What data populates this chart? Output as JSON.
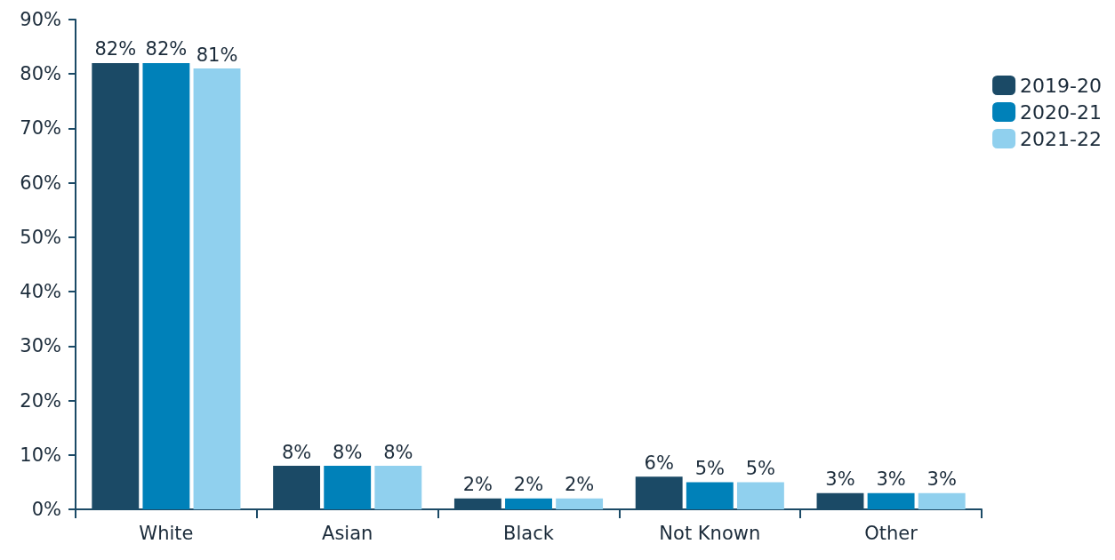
{
  "chart_data": {
    "type": "bar",
    "categories": [
      "White",
      "Asian",
      "Black",
      "Not Known",
      "Other"
    ],
    "series": [
      {
        "name": "2019-20",
        "color": "#1b4a66",
        "values": [
          82,
          8,
          2,
          6,
          3
        ],
        "value_labels": [
          "82%",
          "8%",
          "2%",
          "6%",
          "3%"
        ]
      },
      {
        "name": "2020-21",
        "color": "#0081b9",
        "values": [
          82,
          8,
          2,
          5,
          3
        ],
        "value_labels": [
          "82%",
          "8%",
          "2%",
          "5%",
          "3%"
        ]
      },
      {
        "name": "2021-22",
        "color": "#90d0ee",
        "values": [
          81,
          8,
          2,
          5,
          3
        ],
        "value_labels": [
          "81%",
          "8%",
          "2%",
          "5%",
          "3%"
        ]
      }
    ],
    "ylim": [
      0,
      90
    ],
    "yticks": [
      {
        "value": 0,
        "label": "0%"
      },
      {
        "value": 10,
        "label": "10%"
      },
      {
        "value": 20,
        "label": "20%"
      },
      {
        "value": 30,
        "label": "30%"
      },
      {
        "value": 40,
        "label": "40%"
      },
      {
        "value": 50,
        "label": "50%"
      },
      {
        "value": 60,
        "label": "60%"
      },
      {
        "value": 70,
        "label": "70%"
      },
      {
        "value": 80,
        "label": "80%"
      },
      {
        "value": 90,
        "label": "90%"
      }
    ],
    "grid": false,
    "legend": "right"
  }
}
